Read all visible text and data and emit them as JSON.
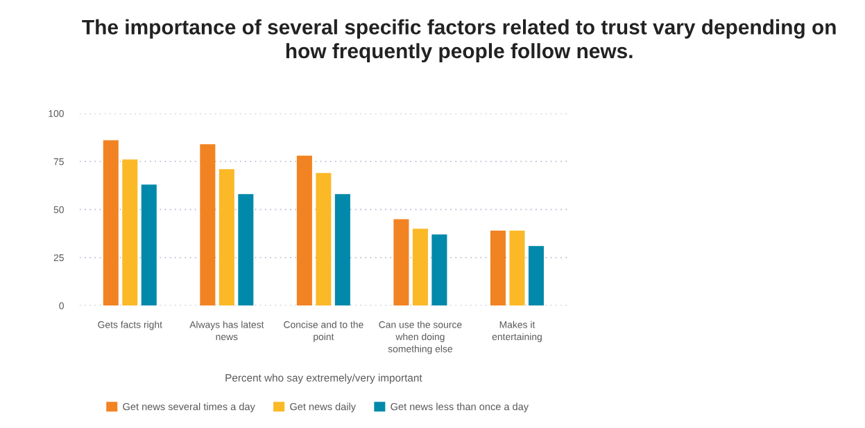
{
  "chart_data": {
    "type": "bar",
    "title": "The importance of several specific factors related to trust vary depending on\nhow frequently people follow news.",
    "xlabel": "Percent who say extremely/very important",
    "categories": [
      "Gets facts right",
      "Always has latest\nnews",
      "Concise and to the\npoint",
      "Can use the source\nwhen doing\nsomething else",
      "Makes it\nentertaining"
    ],
    "series": [
      {
        "name": "Get news several times a day",
        "color": "#f28322",
        "values": [
          86,
          84,
          78,
          45,
          39
        ]
      },
      {
        "name": "Get news daily",
        "color": "#fbb928",
        "values": [
          76,
          71,
          69,
          40,
          39
        ]
      },
      {
        "name": "Get news less than once a day",
        "color": "#0089aa",
        "values": [
          63,
          58,
          58,
          37,
          31
        ]
      }
    ],
    "ylim": [
      0,
      100
    ],
    "yticks": [
      0,
      25,
      50,
      75,
      100
    ],
    "grid": "y",
    "legend": "bottom"
  }
}
